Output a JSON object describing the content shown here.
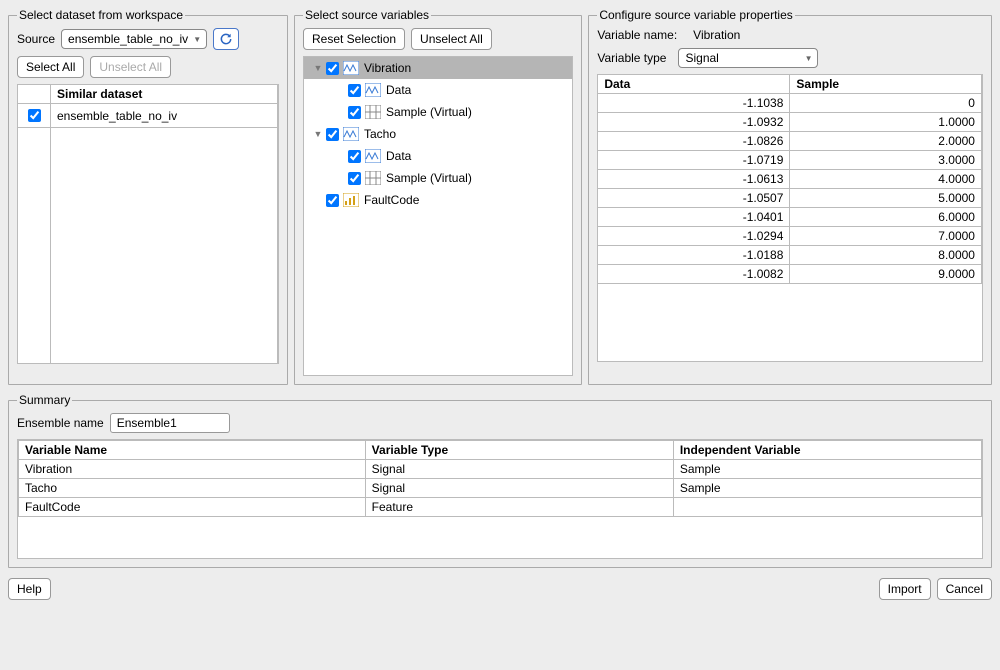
{
  "panel1": {
    "title": "Select dataset from workspace",
    "source_label": "Source",
    "source_value": "ensemble_table_no_iv",
    "select_all": "Select All",
    "unselect_all": "Unselect All",
    "table_header": "Similar dataset",
    "rows": [
      {
        "checked": true,
        "name": "ensemble_table_no_iv"
      }
    ]
  },
  "panel2": {
    "title": "Select source variables",
    "reset": "Reset Selection",
    "unselect_all": "Unselect All",
    "tree": [
      {
        "depth": 0,
        "expander": "▼",
        "checked": true,
        "icon": "signal",
        "label": "Vibration",
        "selected": true
      },
      {
        "depth": 1,
        "expander": "",
        "checked": true,
        "icon": "signal",
        "label": "Data"
      },
      {
        "depth": 1,
        "expander": "",
        "checked": true,
        "icon": "sample",
        "label": "Sample (Virtual)"
      },
      {
        "depth": 0,
        "expander": "▼",
        "checked": true,
        "icon": "signal",
        "label": "Tacho"
      },
      {
        "depth": 1,
        "expander": "",
        "checked": true,
        "icon": "signal",
        "label": "Data"
      },
      {
        "depth": 1,
        "expander": "",
        "checked": true,
        "icon": "sample",
        "label": "Sample (Virtual)"
      },
      {
        "depth": 0,
        "expander": "",
        "checked": true,
        "icon": "feature",
        "label": "FaultCode"
      }
    ]
  },
  "panel3": {
    "title": "Configure source variable properties",
    "varname_label": "Variable name:",
    "varname_value": "Vibration",
    "vartype_label": "Variable type",
    "vartype_value": "Signal",
    "col_data": "Data",
    "col_sample": "Sample",
    "rows": [
      {
        "data": "-1.1038",
        "sample": "0"
      },
      {
        "data": "-1.0932",
        "sample": "1.0000"
      },
      {
        "data": "-1.0826",
        "sample": "2.0000"
      },
      {
        "data": "-1.0719",
        "sample": "3.0000"
      },
      {
        "data": "-1.0613",
        "sample": "4.0000"
      },
      {
        "data": "-1.0507",
        "sample": "5.0000"
      },
      {
        "data": "-1.0401",
        "sample": "6.0000"
      },
      {
        "data": "-1.0294",
        "sample": "7.0000"
      },
      {
        "data": "-1.0188",
        "sample": "8.0000"
      },
      {
        "data": "-1.0082",
        "sample": "9.0000"
      }
    ]
  },
  "summary": {
    "title": "Summary",
    "ensemble_label": "Ensemble name",
    "ensemble_value": "Ensemble1",
    "col1": "Variable Name",
    "col2": "Variable Type",
    "col3": "Independent Variable",
    "rows": [
      {
        "name": "Vibration",
        "type": "Signal",
        "iv": "Sample"
      },
      {
        "name": "Tacho",
        "type": "Signal",
        "iv": "Sample"
      },
      {
        "name": "FaultCode",
        "type": "Feature",
        "iv": ""
      }
    ]
  },
  "bottom": {
    "help": "Help",
    "import": "Import",
    "cancel": "Cancel"
  }
}
